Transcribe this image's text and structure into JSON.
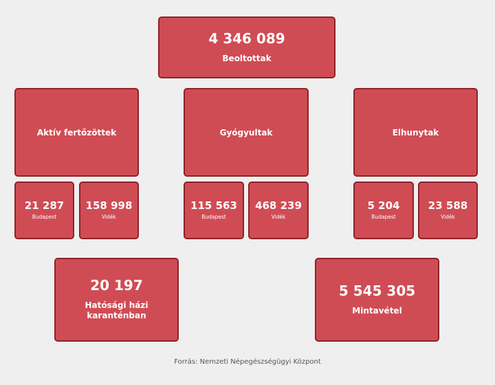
{
  "vaccinated": {
    "value": "4 346 089",
    "label": "Beoltottak"
  },
  "groups": [
    {
      "title": "Aktív fertőzöttek",
      "budapest": {
        "value": "21 287",
        "label": "Budapest"
      },
      "videk": {
        "value": "158 998",
        "label": "Vidék"
      }
    },
    {
      "title": "Gyógyultak",
      "budapest": {
        "value": "115 563",
        "label": "Budapest"
      },
      "videk": {
        "value": "468 239",
        "label": "Vidék"
      }
    },
    {
      "title": "Elhunytak",
      "budapest": {
        "value": "5 204",
        "label": "Budapest"
      },
      "videk": {
        "value": "23 588",
        "label": "Vidék"
      }
    }
  ],
  "quarantine": {
    "value": "20 197",
    "label_line1": "Hatósági házi",
    "label_line2": "karanténban"
  },
  "sampling": {
    "value": "5 545 305",
    "label": "Mintavétel"
  },
  "footer": {
    "source": "Forrás: Nemzeti Népegészségügyi Központ"
  },
  "colors": {
    "card_fill": "#d04c55",
    "card_border": "#8f2127",
    "background": "#efefef",
    "text": "#ffffff"
  }
}
